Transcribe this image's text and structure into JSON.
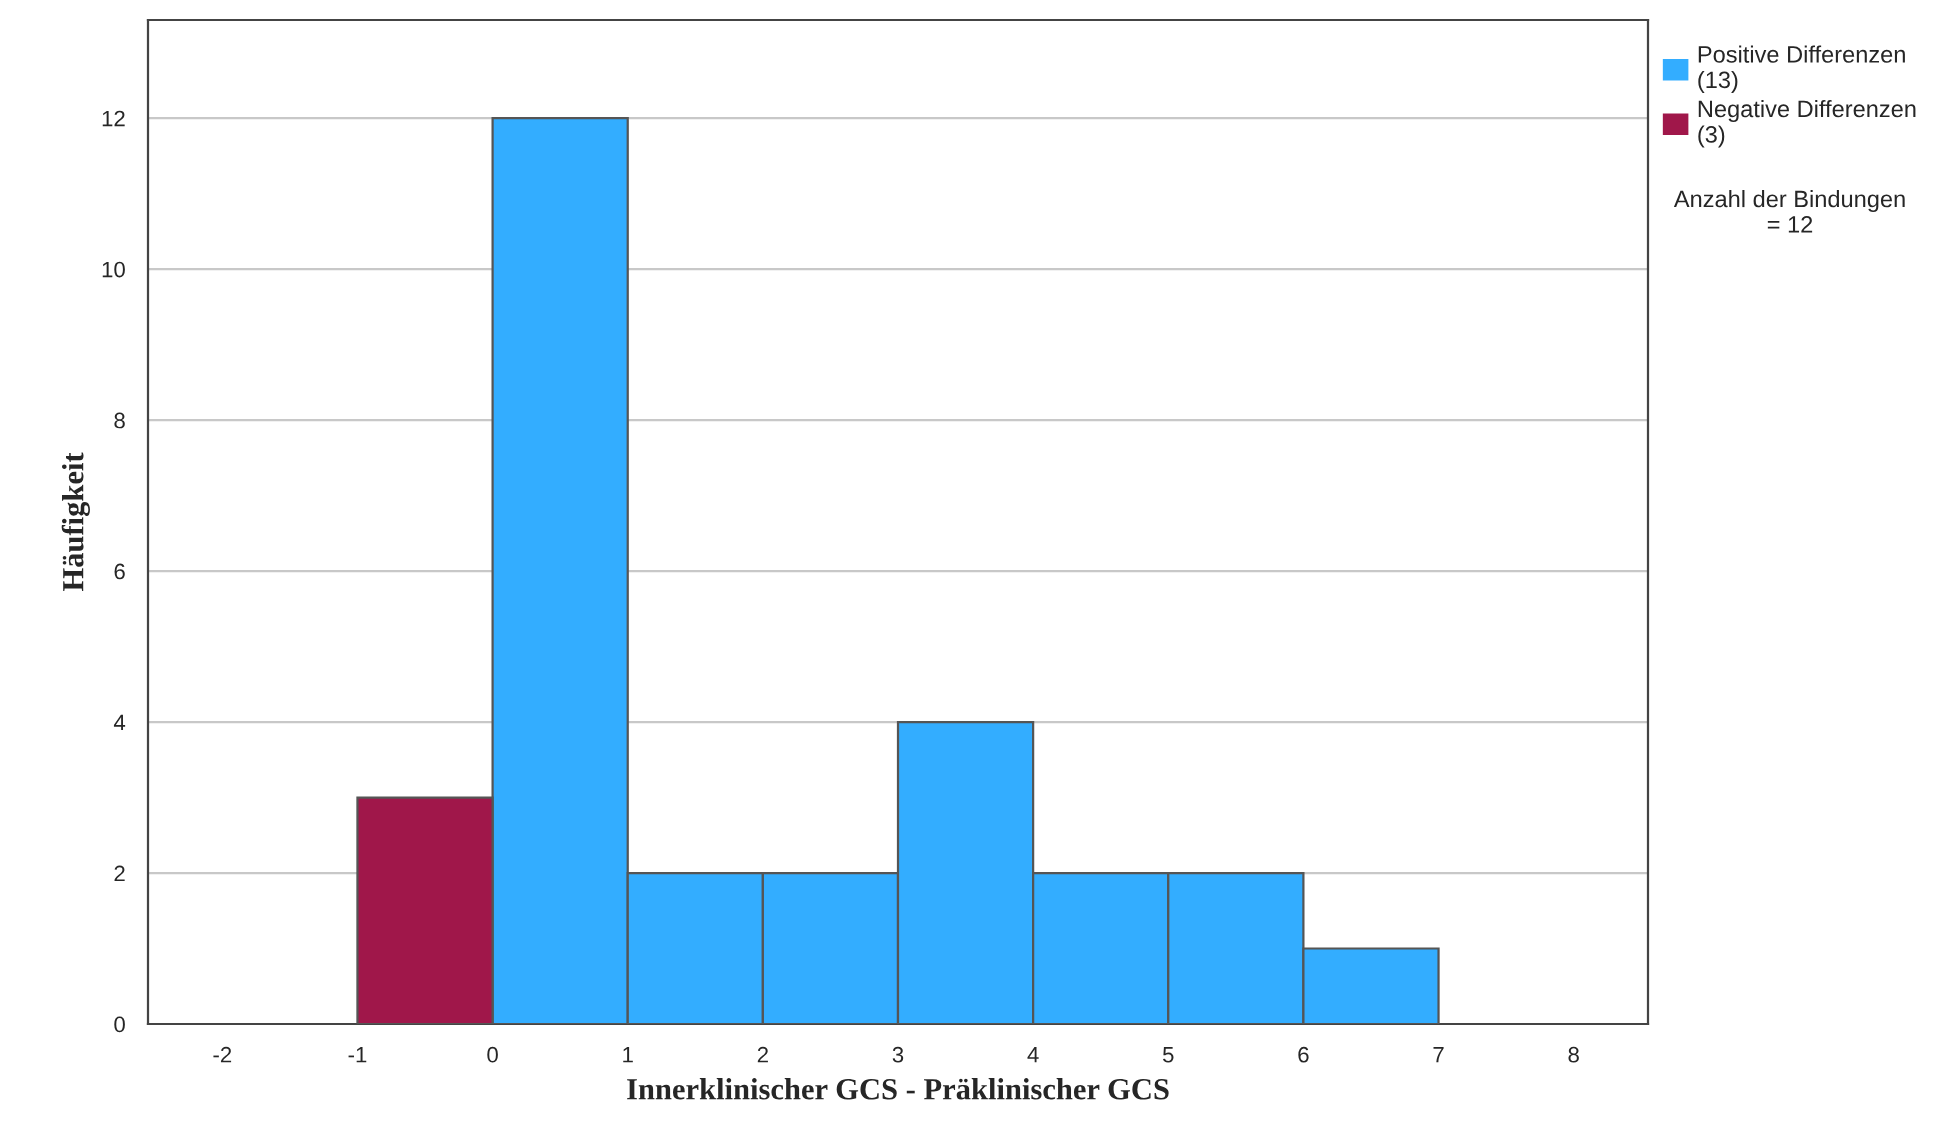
{
  "chart_data": {
    "type": "histogram",
    "xlabel": "Innerklinischer GCS - Präklinischer GCS",
    "ylabel": "Häufigkeit",
    "bins": [
      -1,
      0,
      1,
      2,
      3,
      4,
      5,
      6,
      7
    ],
    "series": [
      {
        "name": "Positive Differenzen\n(13)",
        "color": "#33adff",
        "values": [
          null,
          12,
          2,
          2,
          4,
          2,
          2,
          1
        ]
      },
      {
        "name": "Negative Differenzen\n(3)",
        "color": "#a0174a",
        "values": [
          3,
          null,
          null,
          null,
          null,
          null,
          null,
          null
        ]
      }
    ],
    "xlim": [
      -2.55,
      8.55
    ],
    "xticks": [
      -2,
      -1,
      0,
      1,
      2,
      3,
      4,
      5,
      6,
      7,
      8
    ],
    "ylim": [
      0,
      13.3
    ],
    "yticks": [
      0,
      2,
      4,
      6,
      8,
      10,
      12
    ],
    "grid": "y",
    "legend": "top right",
    "annotations": [
      "Anzahl der Bindungen\n= 12"
    ]
  }
}
